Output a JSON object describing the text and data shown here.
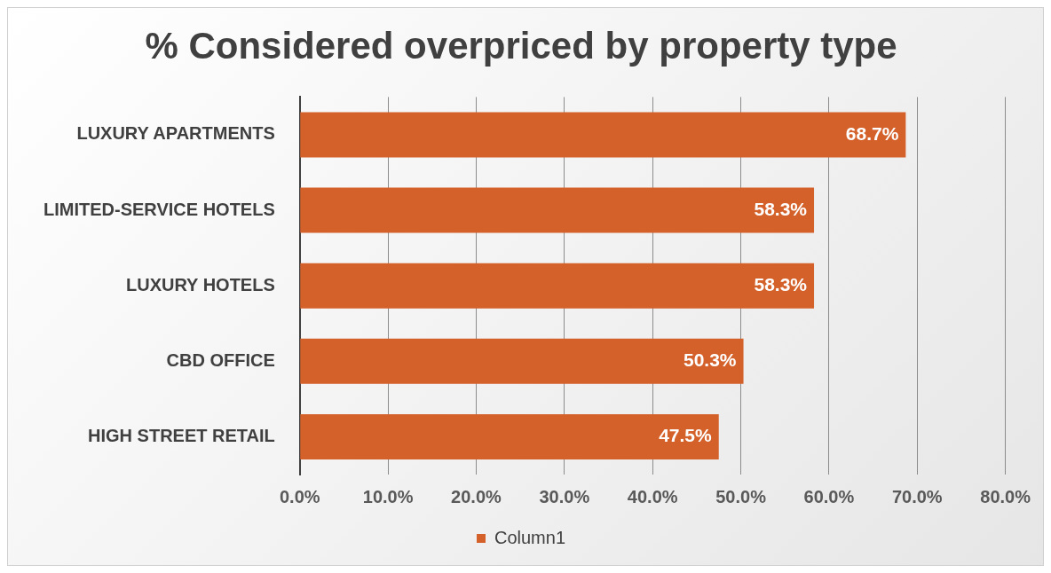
{
  "chart_data": {
    "type": "bar",
    "orientation": "horizontal",
    "title": "% Considered overpriced by property type",
    "categories": [
      "LUXURY APARTMENTS",
      "LIMITED-SERVICE HOTELS",
      "LUXURY HOTELS",
      "CBD OFFICE",
      "HIGH STREET RETAIL"
    ],
    "series": [
      {
        "name": "Column1",
        "color": "#d4612a",
        "values": [
          68.7,
          58.3,
          58.3,
          50.3,
          47.5
        ],
        "value_labels": [
          "68.7%",
          "58.3%",
          "58.3%",
          "50.3%",
          "47.5%"
        ]
      }
    ],
    "xlim": [
      0,
      80
    ],
    "xticks": [
      {
        "value": 0,
        "label": "0.0%"
      },
      {
        "value": 10,
        "label": "10.0%"
      },
      {
        "value": 20,
        "label": "20.0%"
      },
      {
        "value": 30,
        "label": "30.0%"
      },
      {
        "value": 40,
        "label": "40.0%"
      },
      {
        "value": 50,
        "label": "50.0%"
      },
      {
        "value": 60,
        "label": "60.0%"
      },
      {
        "value": 70,
        "label": "70.0%"
      },
      {
        "value": 80,
        "label": "80.0%"
      }
    ],
    "grid": "x",
    "legend": "bottom"
  }
}
